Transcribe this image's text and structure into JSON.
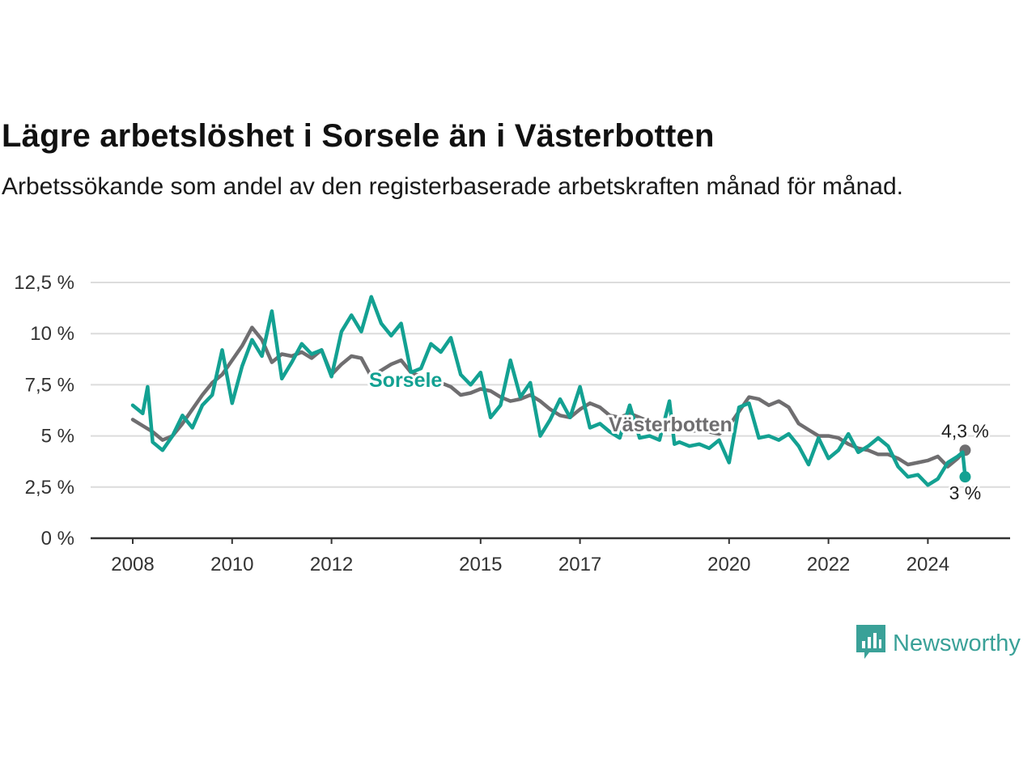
{
  "chart_data": {
    "type": "line",
    "title": "Lägre arbetslöshet i Sorsele än i Västerbotten",
    "subtitle": "Arbetssökande som andel av den registerbaserade arbetskraften månad för månad.",
    "xlabel": "",
    "ylabel": "",
    "xlim": [
      2008,
      2024.9
    ],
    "ylim": [
      0,
      12.5
    ],
    "x_ticks": [
      2008,
      2010,
      2012,
      2015,
      2017,
      2020,
      2022,
      2024
    ],
    "x_tick_labels": [
      "2008",
      "2010",
      "2012",
      "2015",
      "2017",
      "2020",
      "2022",
      "2024"
    ],
    "y_ticks": [
      0,
      2.5,
      5,
      7.5,
      10,
      12.5
    ],
    "y_tick_labels": [
      "0 %",
      "2,5 %",
      "5 %",
      "7,5 %",
      "10 %",
      "12,5 %"
    ],
    "grid": true,
    "series": [
      {
        "name": "Västerbotten",
        "color": "#6f6e70",
        "end_label": "4,3 %",
        "points": [
          [
            2008.0,
            5.8
          ],
          [
            2008.2,
            5.5
          ],
          [
            2008.4,
            5.2
          ],
          [
            2008.6,
            4.8
          ],
          [
            2008.8,
            5.0
          ],
          [
            2009.0,
            5.6
          ],
          [
            2009.2,
            6.3
          ],
          [
            2009.4,
            7.0
          ],
          [
            2009.6,
            7.6
          ],
          [
            2009.8,
            8.0
          ],
          [
            2010.0,
            8.7
          ],
          [
            2010.2,
            9.4
          ],
          [
            2010.4,
            10.3
          ],
          [
            2010.6,
            9.7
          ],
          [
            2010.8,
            8.6
          ],
          [
            2011.0,
            9.0
          ],
          [
            2011.2,
            8.9
          ],
          [
            2011.4,
            9.1
          ],
          [
            2011.6,
            8.8
          ],
          [
            2011.8,
            9.2
          ],
          [
            2012.0,
            8.0
          ],
          [
            2012.2,
            8.5
          ],
          [
            2012.4,
            8.9
          ],
          [
            2012.6,
            8.8
          ],
          [
            2012.8,
            7.9
          ],
          [
            2013.0,
            8.2
          ],
          [
            2013.2,
            8.5
          ],
          [
            2013.4,
            8.7
          ],
          [
            2013.6,
            8.1
          ],
          [
            2013.8,
            7.9
          ],
          [
            2014.0,
            7.7
          ],
          [
            2014.2,
            7.6
          ],
          [
            2014.4,
            7.4
          ],
          [
            2014.6,
            7.0
          ],
          [
            2014.8,
            7.1
          ],
          [
            2015.0,
            7.3
          ],
          [
            2015.2,
            7.2
          ],
          [
            2015.4,
            6.9
          ],
          [
            2015.6,
            6.7
          ],
          [
            2015.8,
            6.8
          ],
          [
            2016.0,
            7.0
          ],
          [
            2016.2,
            6.7
          ],
          [
            2016.4,
            6.3
          ],
          [
            2016.6,
            6.0
          ],
          [
            2016.8,
            5.9
          ],
          [
            2017.0,
            6.3
          ],
          [
            2017.2,
            6.6
          ],
          [
            2017.4,
            6.4
          ],
          [
            2017.6,
            6.0
          ],
          [
            2017.8,
            5.9
          ],
          [
            2018.0,
            6.1
          ],
          [
            2018.2,
            5.9
          ],
          [
            2018.4,
            5.7
          ],
          [
            2018.6,
            5.5
          ],
          [
            2018.8,
            5.3
          ],
          [
            2019.0,
            5.4
          ],
          [
            2019.2,
            5.2
          ],
          [
            2019.4,
            5.3
          ],
          [
            2019.6,
            5.2
          ],
          [
            2019.8,
            5.1
          ],
          [
            2020.0,
            5.5
          ],
          [
            2020.2,
            6.2
          ],
          [
            2020.4,
            6.9
          ],
          [
            2020.6,
            6.8
          ],
          [
            2020.8,
            6.5
          ],
          [
            2021.0,
            6.7
          ],
          [
            2021.2,
            6.4
          ],
          [
            2021.4,
            5.6
          ],
          [
            2021.6,
            5.3
          ],
          [
            2021.8,
            5.0
          ],
          [
            2022.0,
            5.0
          ],
          [
            2022.2,
            4.9
          ],
          [
            2022.4,
            4.6
          ],
          [
            2022.6,
            4.4
          ],
          [
            2022.8,
            4.3
          ],
          [
            2023.0,
            4.1
          ],
          [
            2023.2,
            4.1
          ],
          [
            2023.4,
            3.9
          ],
          [
            2023.6,
            3.6
          ],
          [
            2023.8,
            3.7
          ],
          [
            2024.0,
            3.8
          ],
          [
            2024.2,
            4.0
          ],
          [
            2024.4,
            3.5
          ],
          [
            2024.6,
            3.9
          ],
          [
            2024.75,
            4.3
          ]
        ]
      },
      {
        "name": "Sorsele",
        "color": "#13a192",
        "end_label": "3 %",
        "points": [
          [
            2008.0,
            6.5
          ],
          [
            2008.2,
            6.1
          ],
          [
            2008.3,
            7.4
          ],
          [
            2008.4,
            4.7
          ],
          [
            2008.6,
            4.3
          ],
          [
            2008.8,
            5.0
          ],
          [
            2009.0,
            6.0
          ],
          [
            2009.2,
            5.4
          ],
          [
            2009.4,
            6.5
          ],
          [
            2009.6,
            7.0
          ],
          [
            2009.8,
            9.2
          ],
          [
            2010.0,
            6.6
          ],
          [
            2010.2,
            8.4
          ],
          [
            2010.4,
            9.7
          ],
          [
            2010.6,
            8.9
          ],
          [
            2010.8,
            11.1
          ],
          [
            2011.0,
            7.8
          ],
          [
            2011.2,
            8.6
          ],
          [
            2011.4,
            9.5
          ],
          [
            2011.6,
            9.0
          ],
          [
            2011.8,
            9.2
          ],
          [
            2012.0,
            7.9
          ],
          [
            2012.2,
            10.1
          ],
          [
            2012.4,
            10.9
          ],
          [
            2012.6,
            10.1
          ],
          [
            2012.8,
            11.8
          ],
          [
            2013.0,
            10.5
          ],
          [
            2013.2,
            9.9
          ],
          [
            2013.4,
            10.5
          ],
          [
            2013.6,
            8.1
          ],
          [
            2013.8,
            8.3
          ],
          [
            2014.0,
            9.5
          ],
          [
            2014.2,
            9.1
          ],
          [
            2014.4,
            9.8
          ],
          [
            2014.6,
            8.0
          ],
          [
            2014.8,
            7.5
          ],
          [
            2015.0,
            8.1
          ],
          [
            2015.2,
            5.9
          ],
          [
            2015.4,
            6.5
          ],
          [
            2015.6,
            8.7
          ],
          [
            2015.8,
            6.9
          ],
          [
            2016.0,
            7.6
          ],
          [
            2016.2,
            5.0
          ],
          [
            2016.4,
            5.8
          ],
          [
            2016.6,
            6.8
          ],
          [
            2016.8,
            5.9
          ],
          [
            2017.0,
            7.4
          ],
          [
            2017.2,
            5.4
          ],
          [
            2017.4,
            5.6
          ],
          [
            2017.6,
            5.2
          ],
          [
            2017.8,
            4.9
          ],
          [
            2018.0,
            6.5
          ],
          [
            2018.2,
            4.9
          ],
          [
            2018.4,
            5.0
          ],
          [
            2018.6,
            4.8
          ],
          [
            2018.8,
            6.7
          ],
          [
            2018.9,
            4.6
          ],
          [
            2019.0,
            4.7
          ],
          [
            2019.2,
            4.5
          ],
          [
            2019.4,
            4.6
          ],
          [
            2019.6,
            4.4
          ],
          [
            2019.8,
            4.8
          ],
          [
            2020.0,
            3.7
          ],
          [
            2020.2,
            6.4
          ],
          [
            2020.4,
            6.6
          ],
          [
            2020.6,
            4.9
          ],
          [
            2020.8,
            5.0
          ],
          [
            2021.0,
            4.8
          ],
          [
            2021.2,
            5.1
          ],
          [
            2021.4,
            4.5
          ],
          [
            2021.6,
            3.6
          ],
          [
            2021.8,
            4.9
          ],
          [
            2022.0,
            3.9
          ],
          [
            2022.2,
            4.3
          ],
          [
            2022.4,
            5.1
          ],
          [
            2022.6,
            4.2
          ],
          [
            2022.8,
            4.5
          ],
          [
            2023.0,
            4.9
          ],
          [
            2023.2,
            4.5
          ],
          [
            2023.4,
            3.5
          ],
          [
            2023.6,
            3.0
          ],
          [
            2023.8,
            3.1
          ],
          [
            2024.0,
            2.6
          ],
          [
            2024.2,
            2.9
          ],
          [
            2024.4,
            3.7
          ],
          [
            2024.6,
            4.0
          ],
          [
            2024.7,
            4.2
          ],
          [
            2024.75,
            3.0
          ]
        ]
      }
    ]
  },
  "brand": {
    "name": "Newsworthy"
  }
}
